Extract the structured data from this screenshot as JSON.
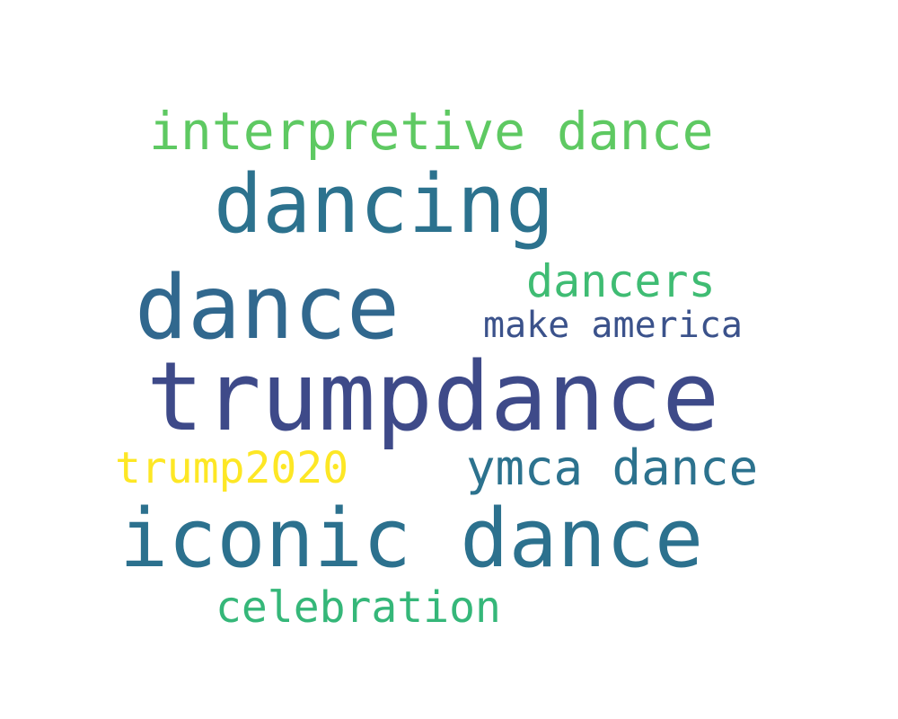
{
  "words": [
    {
      "text": "interpretive dance",
      "color": "#5ec962"
    },
    {
      "text": "dancing",
      "color": "#2c728e"
    },
    {
      "text": "dancers",
      "color": "#3fbc73"
    },
    {
      "text": "dance",
      "color": "#31688e"
    },
    {
      "text": "make america",
      "color": "#3b528b"
    },
    {
      "text": "trumpdance",
      "color": "#3e4a89"
    },
    {
      "text": "trump2020",
      "color": "#fde725"
    },
    {
      "text": "ymca dance",
      "color": "#2c728e"
    },
    {
      "text": "iconic dance",
      "color": "#2c718e"
    },
    {
      "text": "celebration",
      "color": "#35b779"
    }
  ]
}
